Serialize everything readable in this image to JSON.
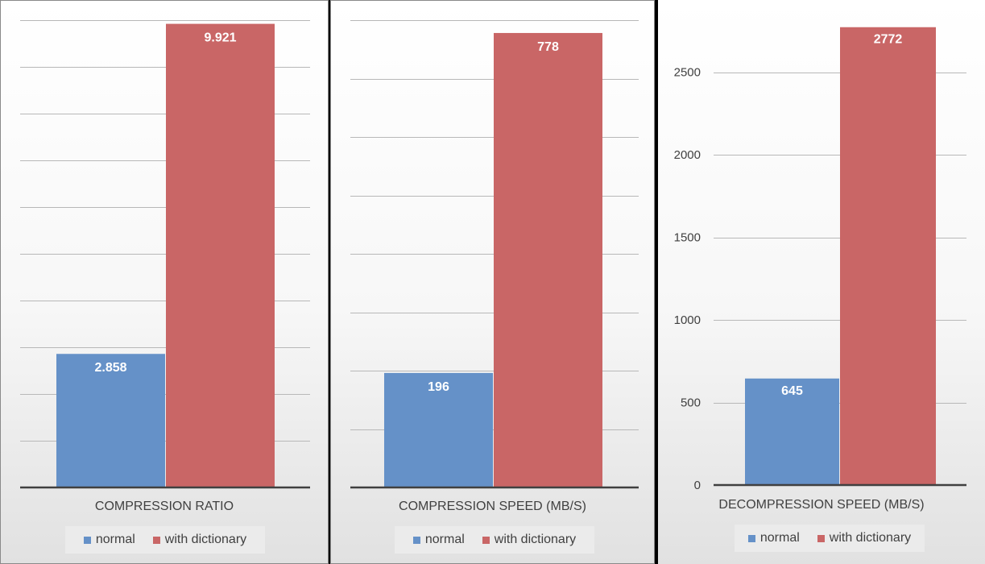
{
  "chart_data": [
    {
      "type": "bar",
      "categories": [
        ""
      ],
      "series": [
        {
          "name": "normal",
          "values": [
            2.858
          ],
          "labels": [
            "2.858"
          ]
        },
        {
          "name": "with dictionary",
          "values": [
            9.921
          ],
          "labels": [
            "9.921"
          ]
        }
      ],
      "xlabel": "COMPRESSION RATIO",
      "ylim": [
        0,
        10
      ],
      "grid_step": 1,
      "show_y_ticks": false,
      "legend": "bottom"
    },
    {
      "type": "bar",
      "categories": [
        ""
      ],
      "series": [
        {
          "name": "normal",
          "values": [
            196
          ],
          "labels": [
            "196"
          ]
        },
        {
          "name": "with dictionary",
          "values": [
            778
          ],
          "labels": [
            "778"
          ]
        }
      ],
      "xlabel": "COMPRESSION SPEED (MB/S)",
      "ylim": [
        0,
        800
      ],
      "grid_step": 100,
      "show_y_ticks": false,
      "legend": "bottom"
    },
    {
      "type": "bar",
      "categories": [
        ""
      ],
      "series": [
        {
          "name": "normal",
          "values": [
            645
          ],
          "labels": [
            "645"
          ]
        },
        {
          "name": "with dictionary",
          "values": [
            2772
          ],
          "labels": [
            "2772"
          ]
        }
      ],
      "xlabel": "DECOMPRESSION SPEED (MB/S)",
      "ylim": [
        0,
        2800
      ],
      "grid_step": 500,
      "show_y_ticks": true,
      "y_ticks": [
        "0",
        "500",
        "1000",
        "1500",
        "2000",
        "2500"
      ],
      "legend": "bottom"
    }
  ],
  "colors": {
    "normal": "#6591c8",
    "with_dictionary": "#c96666"
  }
}
